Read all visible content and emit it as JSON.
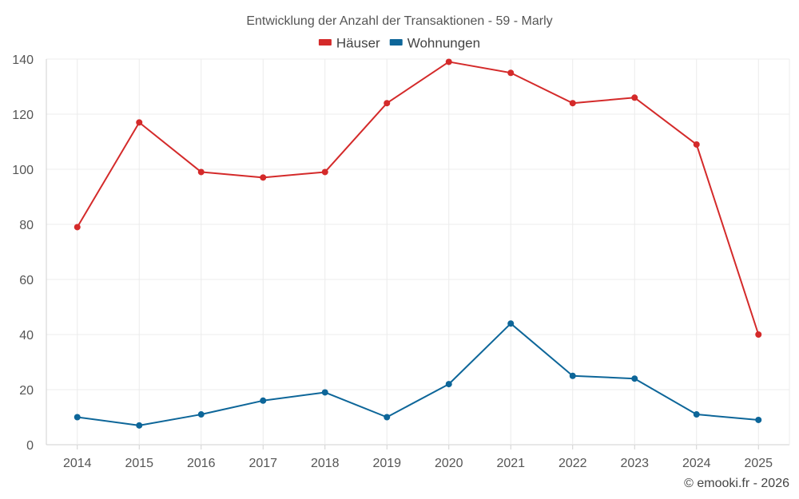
{
  "chart_data": {
    "type": "line",
    "title": "Entwicklung der Anzahl der Transaktionen - 59 - Marly",
    "categories": [
      "2014",
      "2015",
      "2016",
      "2017",
      "2018",
      "2019",
      "2020",
      "2021",
      "2022",
      "2023",
      "2024",
      "2025"
    ],
    "series": [
      {
        "name": "Häuser",
        "color": "#d42a2a",
        "values": [
          79,
          117,
          99,
          97,
          99,
          124,
          139,
          135,
          124,
          126,
          109,
          40
        ]
      },
      {
        "name": "Wohnungen",
        "color": "#0d6699",
        "values": [
          10,
          7,
          11,
          16,
          19,
          10,
          22,
          44,
          25,
          24,
          11,
          9
        ]
      }
    ],
    "ylim": [
      0,
      140
    ],
    "yticks": [
      0,
      20,
      40,
      60,
      80,
      100,
      120,
      140
    ],
    "xlabel": "",
    "ylabel": "",
    "grid": true,
    "legend": "top-center"
  },
  "credit": "© emooki.fr - 2026"
}
